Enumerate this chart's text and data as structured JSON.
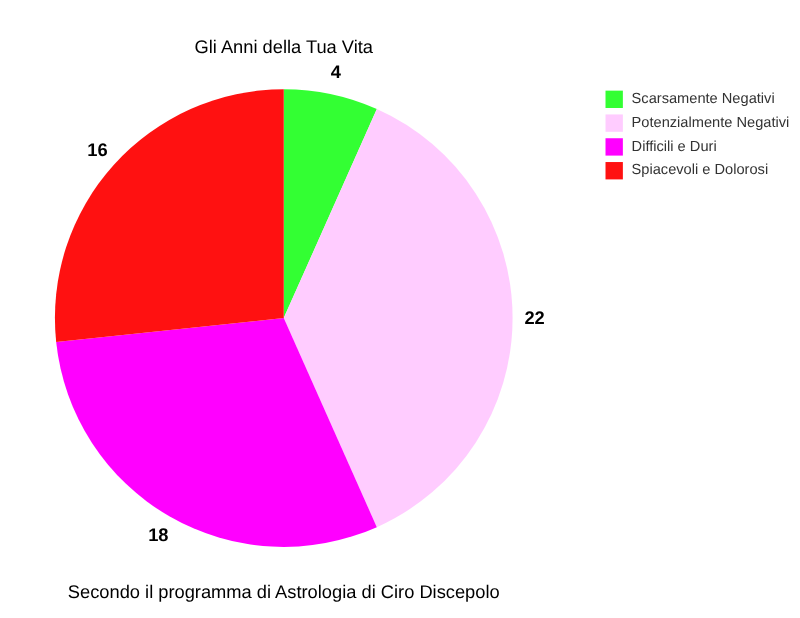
{
  "chart_data": {
    "type": "pie",
    "title": "Gli Anni della Tua Vita",
    "categories": [
      "Scarsamente Negativi",
      "Potenzialmente Negativi",
      "Difficili e Duri",
      "Spiacevoli e Dolorosi"
    ],
    "values": [
      4,
      22,
      18,
      16
    ],
    "colors": [
      "#33ff33",
      "#ffccff",
      "#ff00ff",
      "#ff1111"
    ],
    "data_labels": true,
    "legend": "right",
    "annotations": [
      "Secondo il programma di Astrologia di Ciro Discepolo"
    ]
  }
}
